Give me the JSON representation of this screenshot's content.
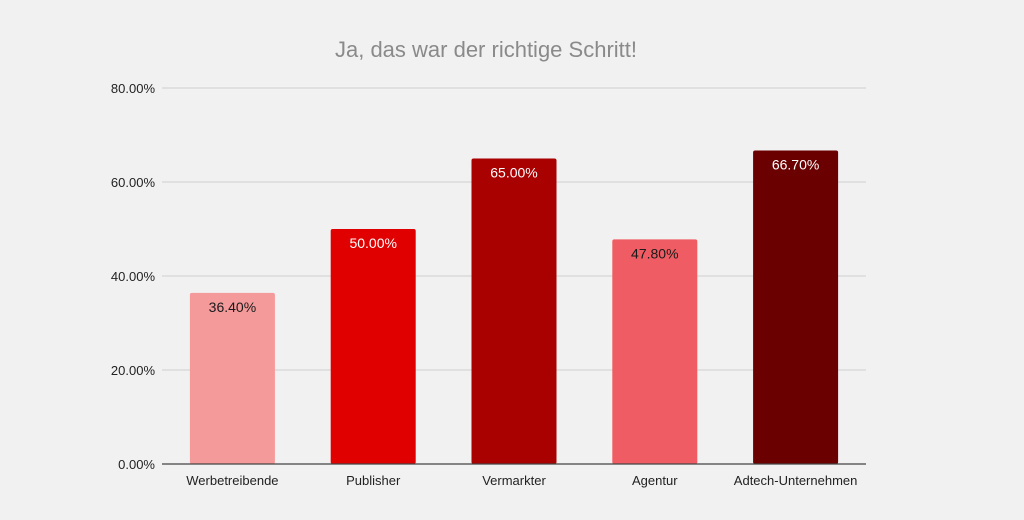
{
  "chart_data": {
    "type": "bar",
    "title": "Ja, das war der richtige Schritt!",
    "xlabel": "",
    "ylabel": "",
    "categories": [
      "Werbetreibende",
      "Publisher",
      "Vermarkter",
      "Agentur",
      "Adtech-Unternehmen"
    ],
    "values": [
      36.4,
      50.0,
      65.0,
      47.8,
      66.7
    ],
    "data_labels": [
      "36.40%",
      "50.00%",
      "65.00%",
      "47.80%",
      "66.70%"
    ],
    "bar_colors": [
      "#f59a9a",
      "#e00000",
      "#a90000",
      "#f05c63",
      "#6a0000"
    ],
    "label_colors": [
      "#1a1a1a",
      "#ffffff",
      "#ffffff",
      "#1a1a1a",
      "#ffffff"
    ],
    "ylim": [
      0,
      80
    ],
    "yticks": [
      0,
      20,
      40,
      60,
      80
    ],
    "ytick_labels": [
      "0.00%",
      "20.00%",
      "40.00%",
      "60.00%",
      "80.00%"
    ],
    "grid": true,
    "legend": "none"
  }
}
